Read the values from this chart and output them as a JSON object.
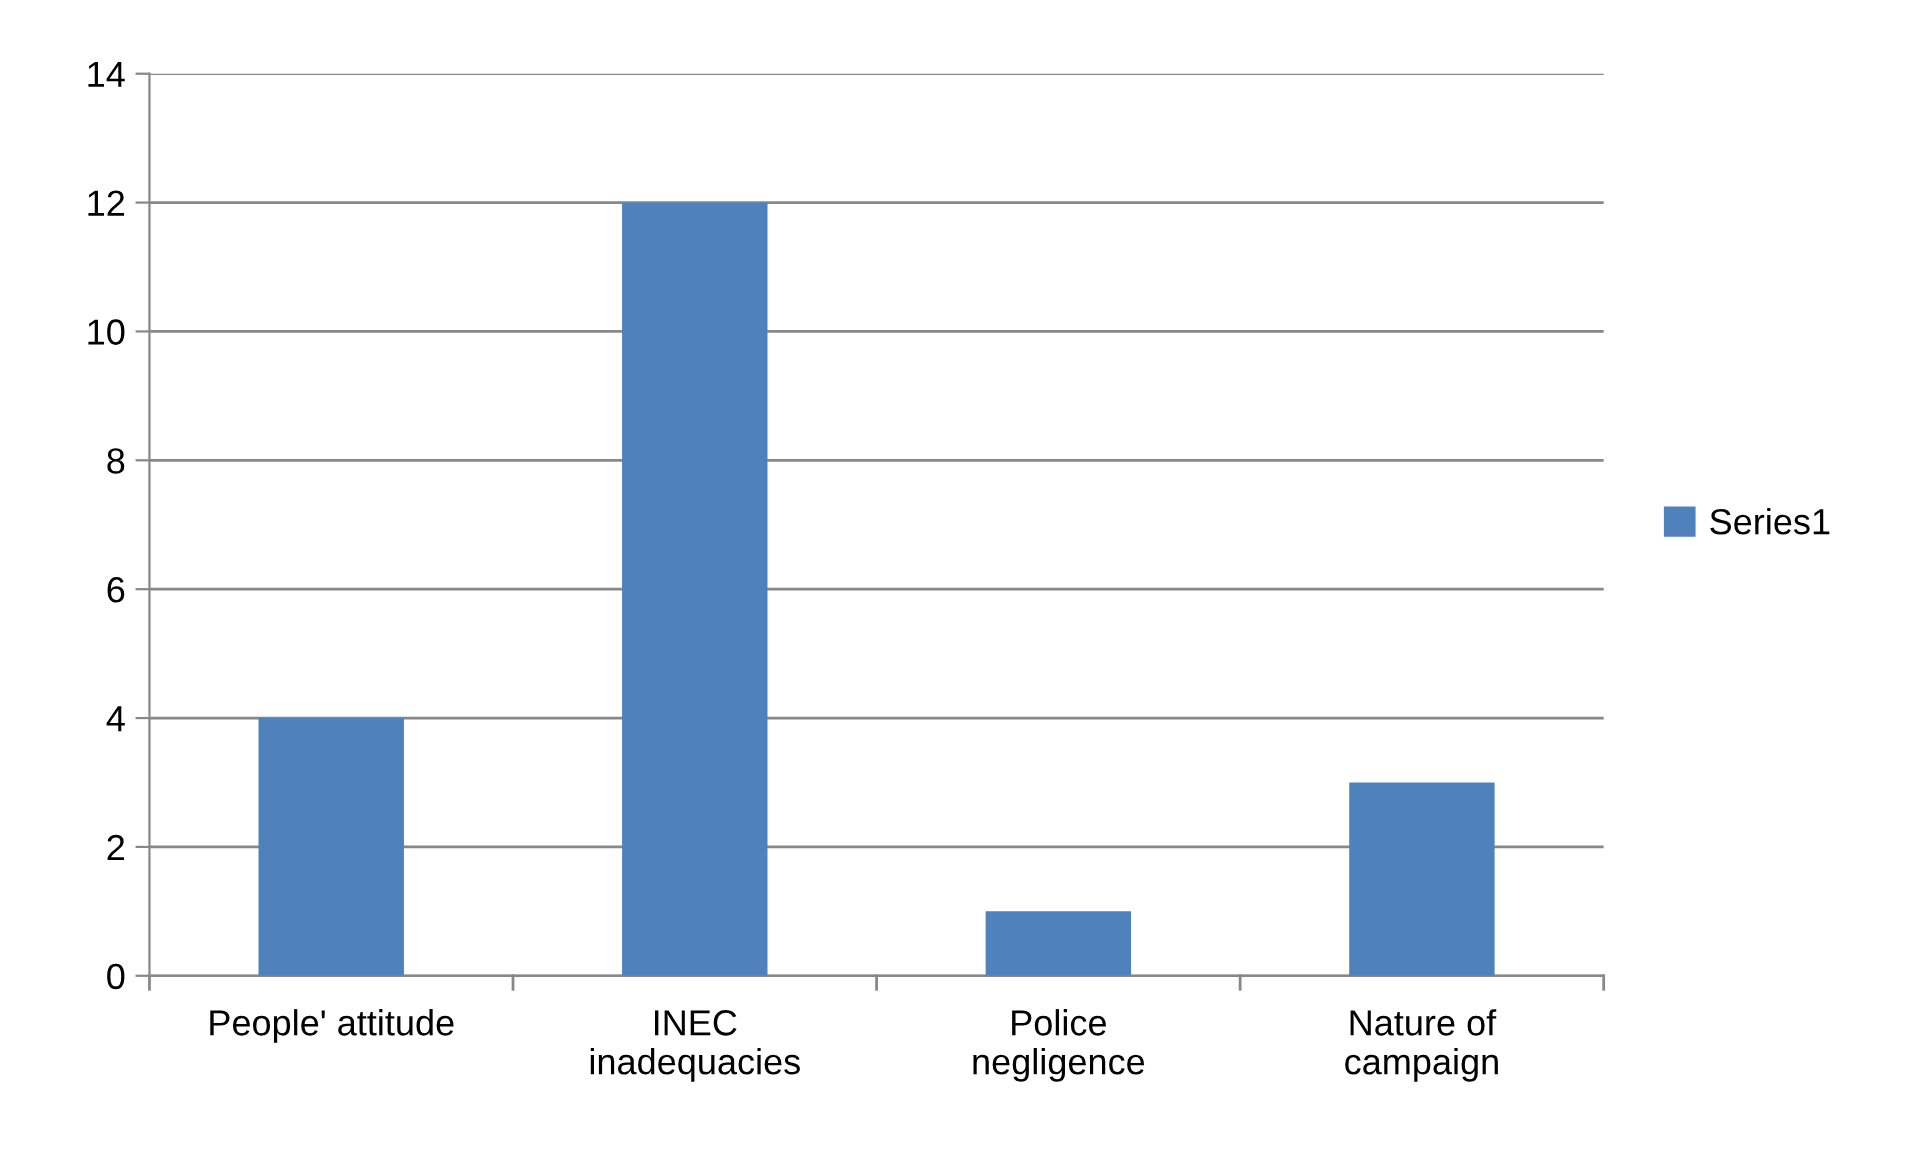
{
  "chart_data": {
    "type": "bar",
    "categories": [
      "People' attitude",
      "INEC\ninadequacies",
      "Police\nnegligence",
      "Nature of\ncampaign"
    ],
    "series": [
      {
        "name": "Series1",
        "color": "#4f81bd",
        "values": [
          4,
          12,
          1,
          3
        ]
      }
    ],
    "ylim": [
      0,
      14
    ],
    "yticks": [
      0,
      2,
      4,
      6,
      8,
      10,
      12,
      14
    ],
    "grid": "y",
    "legend": "right"
  }
}
